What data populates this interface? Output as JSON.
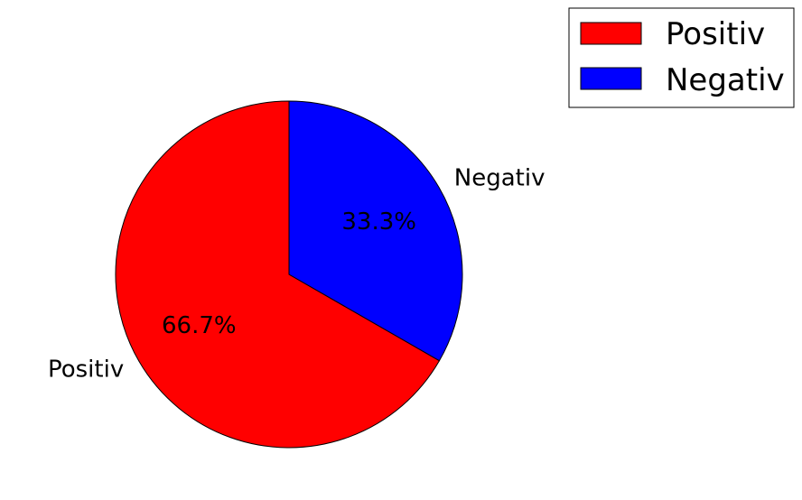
{
  "chart_data": {
    "type": "pie",
    "categories": [
      "Positiv",
      "Negativ"
    ],
    "values": [
      66.7,
      33.3
    ],
    "colors": [
      "#ff0000",
      "#0000ff"
    ],
    "slice_labels": [
      "Positiv",
      "Negativ"
    ],
    "percent_labels": [
      "66.7%",
      "33.3%"
    ],
    "legend": {
      "placement": "top-right",
      "entries": [
        "Positiv",
        "Negativ"
      ]
    },
    "start_angle_deg": 90,
    "direction": "counterclockwise"
  }
}
